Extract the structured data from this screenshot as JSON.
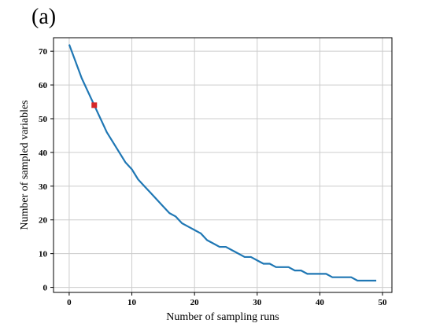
{
  "panel_label": "(a)",
  "chart_data": {
    "type": "line",
    "xlabel": "Number of sampling runs",
    "ylabel": "Number of sampled variables",
    "xlim": [
      -2.5,
      51.5
    ],
    "ylim": [
      -1.5,
      74
    ],
    "xticks": [
      0,
      10,
      20,
      30,
      40,
      50
    ],
    "yticks": [
      0,
      10,
      20,
      30,
      40,
      50,
      60,
      70
    ],
    "grid": true,
    "series": [
      {
        "color": "#1f77b4",
        "x": [
          0,
          1,
          2,
          3,
          4,
          5,
          6,
          7,
          8,
          9,
          10,
          11,
          12,
          13,
          14,
          15,
          16,
          17,
          18,
          19,
          20,
          21,
          22,
          23,
          24,
          25,
          26,
          27,
          28,
          29,
          30,
          31,
          32,
          33,
          34,
          35,
          36,
          37,
          38,
          39,
          40,
          41,
          42,
          43,
          44,
          45,
          46,
          47,
          48,
          49
        ],
        "y": [
          72,
          67,
          62,
          58,
          54,
          50,
          46,
          43,
          40,
          37,
          35,
          32,
          30,
          28,
          26,
          24,
          22,
          21,
          19,
          18,
          17,
          16,
          14,
          13,
          12,
          12,
          11,
          10,
          9,
          9,
          8,
          7,
          7,
          6,
          6,
          6,
          5,
          5,
          4,
          4,
          4,
          4,
          3,
          3,
          3,
          3,
          2,
          2,
          2,
          2
        ]
      }
    ],
    "highlight": {
      "x": 4,
      "y": 54,
      "color": "#d62728",
      "marker": "square"
    }
  }
}
